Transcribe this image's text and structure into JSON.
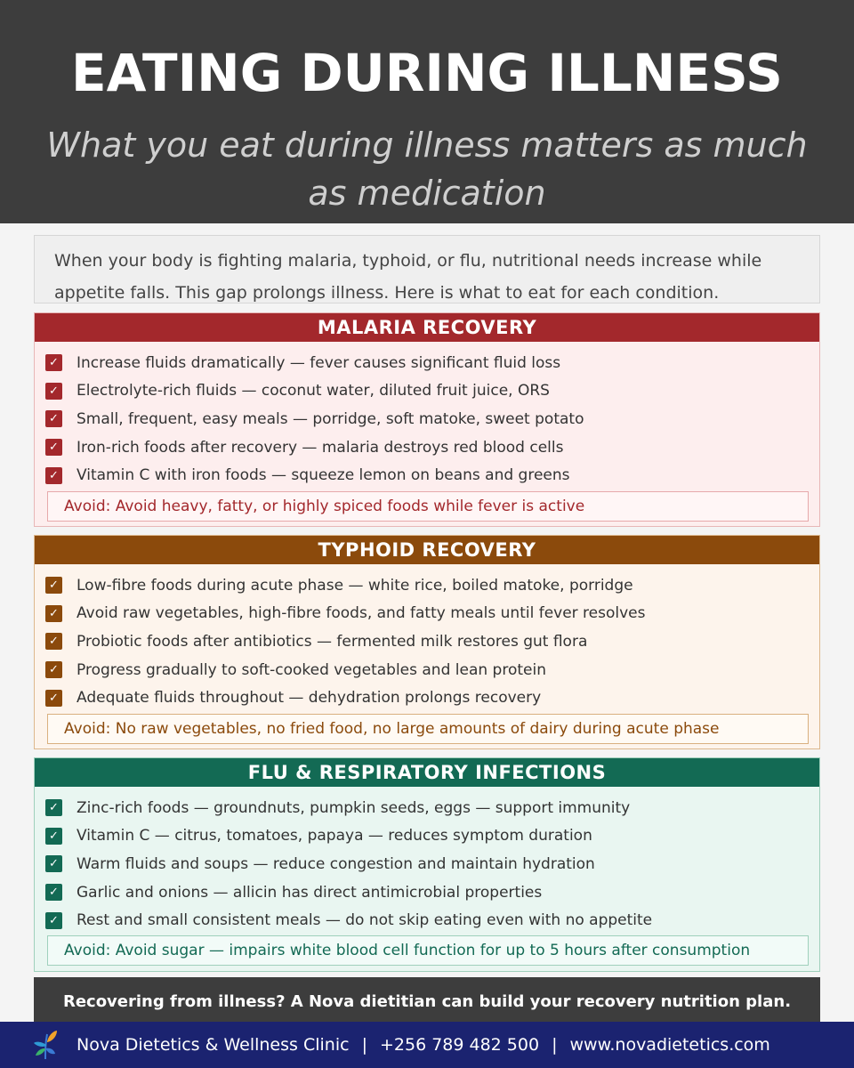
{
  "header": {
    "title": "EATING DURING ILLNESS",
    "subtitle": "What you eat during illness matters as much as medication"
  },
  "intro": "When your body is fighting malaria, typhoid, or flu, nutritional needs increase while appetite falls. This gap prolongs illness. Here is what to eat for each condition.",
  "sections": [
    {
      "title": "MALARIA RECOVERY",
      "color": "#a3282c",
      "items": [
        "Increase fluids dramatically — fever causes significant fluid loss",
        "Electrolyte-rich fluids — coconut water, diluted fruit juice, ORS",
        "Small, frequent, easy meals — porridge, soft matoke, sweet potato",
        "Iron-rich foods after recovery — malaria destroys red blood cells",
        "Vitamin C with iron foods — squeeze lemon on beans and greens"
      ],
      "avoid": "Avoid: Avoid heavy, fatty, or highly spiced foods while fever is active"
    },
    {
      "title": "TYPHOID RECOVERY",
      "color": "#8b4a0c",
      "items": [
        "Low-fibre foods during acute phase — white rice, boiled matoke, porridge",
        "Avoid raw vegetables, high-fibre foods, and fatty meals until fever resolves",
        "Probiotic foods after antibiotics — fermented milk restores gut flora",
        "Progress gradually to soft-cooked vegetables and lean protein",
        "Adequate fluids throughout — dehydration prolongs recovery"
      ],
      "avoid": "Avoid: No raw vegetables, no fried food, no large amounts of dairy during acute phase"
    },
    {
      "title": "FLU & RESPIRATORY INFECTIONS",
      "color": "#136a54",
      "items": [
        "Zinc-rich foods — groundnuts, pumpkin seeds, eggs — support immunity",
        "Vitamin C — citrus, tomatoes, papaya — reduces symptom duration",
        "Warm fluids and soups — reduce congestion and maintain hydration",
        "Garlic and onions — allicin has direct antimicrobial properties",
        "Rest and small consistent meals — do not skip eating even with no appetite"
      ],
      "avoid": "Avoid: Avoid sugar — impairs white blood cell function for up to 5 hours after consumption"
    }
  ],
  "check_glyph": "✓",
  "cta": "Recovering from illness? A Nova dietitian can build your recovery nutrition plan.",
  "footer": {
    "clinic": "Nova Dietetics & Wellness Clinic",
    "separator": "|",
    "phone": "+256 789 482 500",
    "website": "www.novadietetics.com",
    "logo_icon": "leaf-logo-icon"
  }
}
